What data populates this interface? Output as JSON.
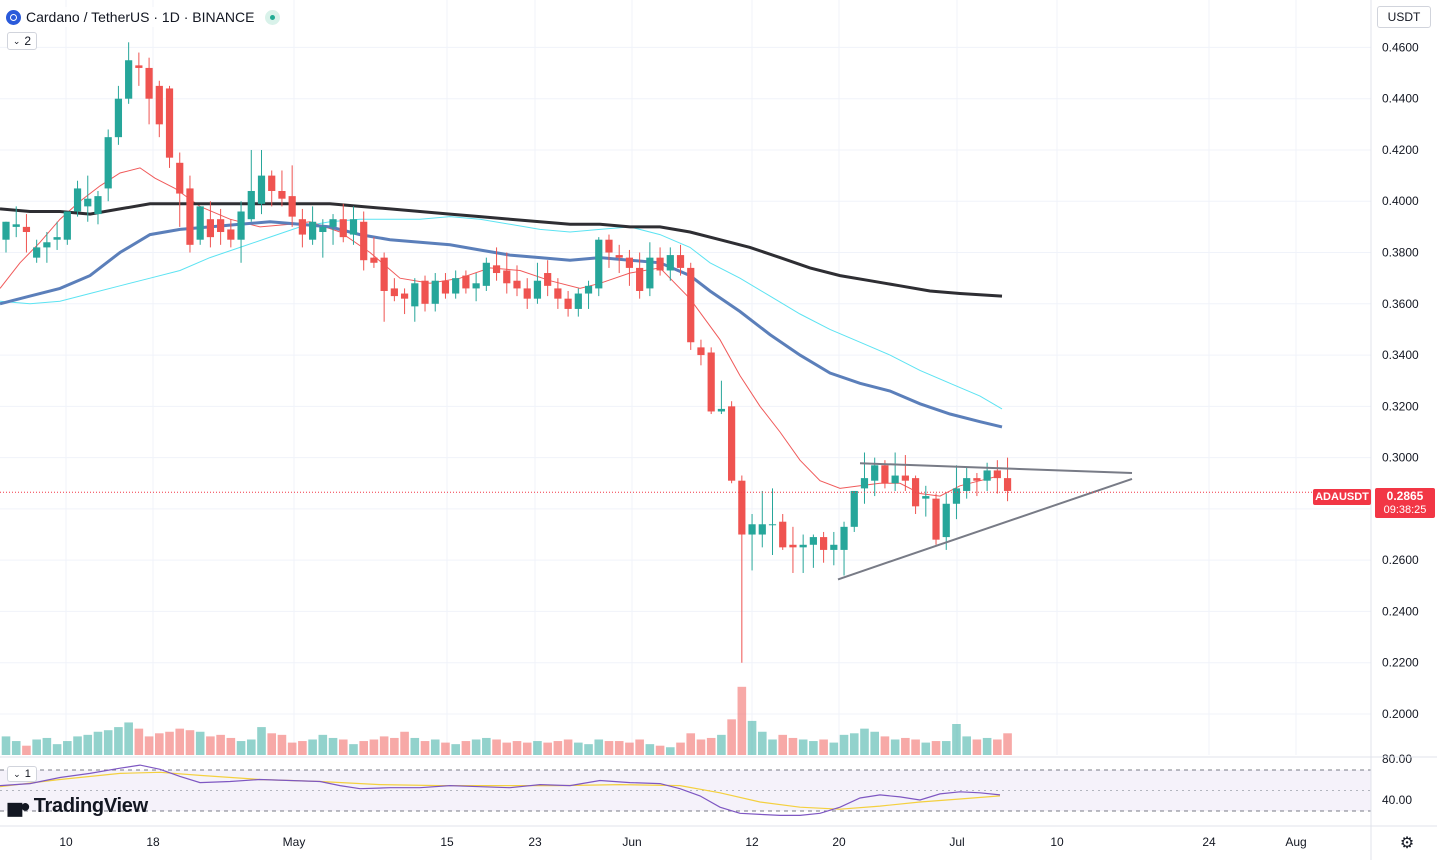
{
  "header": {
    "title": "Cardano / TetherUS · 1D · BINANCE",
    "indicator_count": "2",
    "rsi_indicator_count": "1"
  },
  "currency_button": "USDT",
  "branding": "TradingView",
  "last_price": {
    "symbol": "ADAUSDT",
    "price": "0.2865",
    "countdown": "09:38:25"
  },
  "colors": {
    "up": "#26a69a",
    "down": "#ef5350",
    "ma_short": "#f05a5a",
    "ma_mid": "#5b7fba",
    "ma_cyan": "#5ce3f2",
    "ma_long": "#2e2e33",
    "trendline": "#787b86",
    "rsi": "#7e57c2",
    "rsi_ma": "#f4d03f"
  },
  "chart_data": {
    "type": "candlestick",
    "y_axis_labels": [
      "0.4600",
      "0.4400",
      "0.4200",
      "0.4000",
      "0.3800",
      "0.3600",
      "0.3400",
      "0.3200",
      "0.3000",
      "0.2600",
      "0.2400",
      "0.2200",
      "0.2000"
    ],
    "x_axis_labels": [
      "10",
      "18",
      "May",
      "15",
      "23",
      "Jun",
      "12",
      "20",
      "Jul",
      "10",
      "24",
      "Aug"
    ],
    "ylim": [
      0.184,
      0.4785
    ],
    "candles": [
      [
        0.385,
        0.392,
        0.38,
        0.392
      ],
      [
        0.39,
        0.398,
        0.386,
        0.391
      ],
      [
        0.39,
        0.395,
        0.38,
        0.388
      ],
      [
        0.378,
        0.385,
        0.376,
        0.382
      ],
      [
        0.382,
        0.388,
        0.376,
        0.384
      ],
      [
        0.385,
        0.392,
        0.381,
        0.386
      ],
      [
        0.385,
        0.395,
        0.383,
        0.396
      ],
      [
        0.396,
        0.408,
        0.394,
        0.405
      ],
      [
        0.398,
        0.41,
        0.392,
        0.401
      ],
      [
        0.395,
        0.404,
        0.391,
        0.402
      ],
      [
        0.405,
        0.428,
        0.4,
        0.425
      ],
      [
        0.425,
        0.445,
        0.422,
        0.44
      ],
      [
        0.44,
        0.462,
        0.438,
        0.455
      ],
      [
        0.453,
        0.458,
        0.445,
        0.452
      ],
      [
        0.452,
        0.456,
        0.43,
        0.44
      ],
      [
        0.445,
        0.447,
        0.425,
        0.43
      ],
      [
        0.444,
        0.445,
        0.413,
        0.417
      ],
      [
        0.415,
        0.419,
        0.39,
        0.403
      ],
      [
        0.405,
        0.41,
        0.38,
        0.383
      ],
      [
        0.385,
        0.398,
        0.383,
        0.398
      ],
      [
        0.393,
        0.4,
        0.382,
        0.386
      ],
      [
        0.393,
        0.397,
        0.383,
        0.388
      ],
      [
        0.389,
        0.393,
        0.382,
        0.385
      ],
      [
        0.385,
        0.4,
        0.376,
        0.396
      ],
      [
        0.393,
        0.42,
        0.392,
        0.404
      ],
      [
        0.399,
        0.42,
        0.395,
        0.41
      ],
      [
        0.41,
        0.412,
        0.398,
        0.404
      ],
      [
        0.404,
        0.412,
        0.398,
        0.401
      ],
      [
        0.402,
        0.414,
        0.39,
        0.394
      ],
      [
        0.393,
        0.397,
        0.382,
        0.387
      ],
      [
        0.385,
        0.398,
        0.383,
        0.392
      ],
      [
        0.388,
        0.393,
        0.378,
        0.39
      ],
      [
        0.39,
        0.395,
        0.383,
        0.393
      ],
      [
        0.393,
        0.399,
        0.384,
        0.386
      ],
      [
        0.387,
        0.398,
        0.383,
        0.393
      ],
      [
        0.392,
        0.396,
        0.373,
        0.377
      ],
      [
        0.378,
        0.386,
        0.374,
        0.376
      ],
      [
        0.378,
        0.38,
        0.353,
        0.365
      ],
      [
        0.366,
        0.37,
        0.361,
        0.363
      ],
      [
        0.364,
        0.366,
        0.356,
        0.362
      ],
      [
        0.359,
        0.37,
        0.353,
        0.368
      ],
      [
        0.369,
        0.371,
        0.357,
        0.36
      ],
      [
        0.36,
        0.372,
        0.357,
        0.369
      ],
      [
        0.369,
        0.372,
        0.362,
        0.364
      ],
      [
        0.364,
        0.373,
        0.362,
        0.37
      ],
      [
        0.371,
        0.373,
        0.364,
        0.366
      ],
      [
        0.366,
        0.372,
        0.361,
        0.368
      ],
      [
        0.367,
        0.378,
        0.365,
        0.376
      ],
      [
        0.375,
        0.382,
        0.369,
        0.372
      ],
      [
        0.373,
        0.38,
        0.364,
        0.368
      ],
      [
        0.369,
        0.375,
        0.363,
        0.366
      ],
      [
        0.366,
        0.37,
        0.358,
        0.362
      ],
      [
        0.362,
        0.376,
        0.36,
        0.369
      ],
      [
        0.372,
        0.377,
        0.363,
        0.367
      ],
      [
        0.366,
        0.37,
        0.358,
        0.362
      ],
      [
        0.362,
        0.365,
        0.355,
        0.358
      ],
      [
        0.358,
        0.366,
        0.355,
        0.364
      ],
      [
        0.364,
        0.369,
        0.358,
        0.367
      ],
      [
        0.366,
        0.386,
        0.363,
        0.385
      ],
      [
        0.385,
        0.387,
        0.374,
        0.38
      ],
      [
        0.379,
        0.383,
        0.372,
        0.378
      ],
      [
        0.378,
        0.381,
        0.367,
        0.374
      ],
      [
        0.374,
        0.38,
        0.362,
        0.365
      ],
      [
        0.366,
        0.384,
        0.363,
        0.378
      ],
      [
        0.378,
        0.382,
        0.371,
        0.373
      ],
      [
        0.373,
        0.382,
        0.369,
        0.379
      ],
      [
        0.379,
        0.383,
        0.371,
        0.374
      ],
      [
        0.374,
        0.376,
        0.342,
        0.345
      ],
      [
        0.343,
        0.346,
        0.336,
        0.34
      ],
      [
        0.341,
        0.343,
        0.317,
        0.318
      ],
      [
        0.318,
        0.33,
        0.317,
        0.319
      ],
      [
        0.32,
        0.322,
        0.29,
        0.291
      ],
      [
        0.291,
        0.293,
        0.22,
        0.27
      ],
      [
        0.27,
        0.278,
        0.256,
        0.274
      ],
      [
        0.27,
        0.287,
        0.265,
        0.274
      ],
      [
        0.274,
        0.288,
        0.262,
        0.274
      ],
      [
        0.275,
        0.278,
        0.264,
        0.265
      ],
      [
        0.266,
        0.273,
        0.255,
        0.265
      ],
      [
        0.265,
        0.27,
        0.255,
        0.266
      ],
      [
        0.266,
        0.27,
        0.257,
        0.269
      ],
      [
        0.269,
        0.271,
        0.259,
        0.264
      ],
      [
        0.264,
        0.271,
        0.258,
        0.266
      ],
      [
        0.264,
        0.275,
        0.254,
        0.273
      ],
      [
        0.273,
        0.286,
        0.271,
        0.287
      ],
      [
        0.288,
        0.302,
        0.282,
        0.292
      ],
      [
        0.291,
        0.3,
        0.285,
        0.297
      ],
      [
        0.297,
        0.299,
        0.288,
        0.29
      ],
      [
        0.29,
        0.302,
        0.287,
        0.293
      ],
      [
        0.293,
        0.301,
        0.287,
        0.291
      ],
      [
        0.292,
        0.293,
        0.278,
        0.281
      ],
      [
        0.284,
        0.289,
        0.277,
        0.285
      ],
      [
        0.284,
        0.286,
        0.266,
        0.268
      ],
      [
        0.269,
        0.286,
        0.264,
        0.282
      ],
      [
        0.282,
        0.297,
        0.276,
        0.288
      ],
      [
        0.287,
        0.296,
        0.284,
        0.292
      ],
      [
        0.292,
        0.294,
        0.285,
        0.291
      ],
      [
        0.291,
        0.298,
        0.287,
        0.295
      ],
      [
        0.295,
        0.299,
        0.286,
        0.292
      ],
      [
        0.292,
        0.3,
        0.283,
        0.287
      ]
    ],
    "volume": [
      12,
      9,
      6,
      10,
      11,
      7,
      9,
      12,
      13,
      15,
      16,
      18,
      21,
      17,
      12,
      14,
      15,
      17,
      16,
      15,
      12,
      13,
      11,
      9,
      10,
      18,
      14,
      13,
      8,
      9,
      10,
      13,
      11,
      10,
      7,
      9,
      10,
      12,
      11,
      15,
      11,
      9,
      10,
      8,
      7,
      9,
      10,
      11,
      10,
      8,
      9,
      8,
      9,
      8,
      9,
      10,
      8,
      7,
      10,
      9,
      9,
      8,
      10,
      7,
      6,
      5,
      8,
      14,
      10,
      11,
      13,
      23,
      44,
      22,
      15,
      10,
      13,
      11,
      10,
      9,
      10,
      8,
      13,
      14,
      17,
      15,
      12,
      10,
      11,
      10,
      8,
      9,
      9,
      20,
      12,
      10,
      11,
      10,
      14
    ],
    "ma_short": [
      [
        0,
        0.366
      ],
      [
        20,
        0.376
      ],
      [
        40,
        0.384
      ],
      [
        60,
        0.393
      ],
      [
        80,
        0.4
      ],
      [
        100,
        0.406
      ],
      [
        120,
        0.411
      ],
      [
        140,
        0.413
      ],
      [
        155,
        0.409
      ],
      [
        175,
        0.405
      ],
      [
        200,
        0.398
      ],
      [
        230,
        0.393
      ],
      [
        260,
        0.39
      ],
      [
        290,
        0.391
      ],
      [
        310,
        0.392
      ],
      [
        340,
        0.388
      ],
      [
        370,
        0.38
      ],
      [
        400,
        0.37
      ],
      [
        430,
        0.368
      ],
      [
        460,
        0.37
      ],
      [
        490,
        0.374
      ],
      [
        520,
        0.373
      ],
      [
        550,
        0.369
      ],
      [
        580,
        0.366
      ],
      [
        600,
        0.368
      ],
      [
        630,
        0.372
      ],
      [
        660,
        0.374
      ],
      [
        690,
        0.362
      ],
      [
        720,
        0.346
      ],
      [
        740,
        0.332
      ],
      [
        760,
        0.32
      ],
      [
        780,
        0.31
      ],
      [
        800,
        0.299
      ],
      [
        820,
        0.291
      ],
      [
        840,
        0.288
      ],
      [
        860,
        0.289
      ],
      [
        880,
        0.29
      ],
      [
        900,
        0.29
      ],
      [
        920,
        0.286
      ],
      [
        940,
        0.285
      ],
      [
        960,
        0.289
      ],
      [
        980,
        0.291
      ],
      [
        1000,
        0.293
      ]
    ],
    "ma_mid": [
      [
        0,
        0.36
      ],
      [
        30,
        0.363
      ],
      [
        60,
        0.366
      ],
      [
        90,
        0.371
      ],
      [
        120,
        0.38
      ],
      [
        150,
        0.387
      ],
      [
        180,
        0.389
      ],
      [
        210,
        0.39
      ],
      [
        240,
        0.391
      ],
      [
        270,
        0.392
      ],
      [
        300,
        0.391
      ],
      [
        330,
        0.39
      ],
      [
        360,
        0.387
      ],
      [
        390,
        0.385
      ],
      [
        420,
        0.384
      ],
      [
        450,
        0.383
      ],
      [
        480,
        0.381
      ],
      [
        510,
        0.379
      ],
      [
        540,
        0.378
      ],
      [
        570,
        0.377
      ],
      [
        600,
        0.378
      ],
      [
        630,
        0.377
      ],
      [
        660,
        0.376
      ],
      [
        690,
        0.371
      ],
      [
        710,
        0.365
      ],
      [
        740,
        0.357
      ],
      [
        770,
        0.348
      ],
      [
        800,
        0.34
      ],
      [
        830,
        0.333
      ],
      [
        860,
        0.329
      ],
      [
        890,
        0.326
      ],
      [
        920,
        0.321
      ],
      [
        950,
        0.317
      ],
      [
        980,
        0.314
      ],
      [
        1002,
        0.312
      ]
    ],
    "ma_cyan": [
      [
        0,
        0.361
      ],
      [
        30,
        0.36
      ],
      [
        60,
        0.361
      ],
      [
        90,
        0.364
      ],
      [
        120,
        0.367
      ],
      [
        150,
        0.37
      ],
      [
        180,
        0.373
      ],
      [
        210,
        0.378
      ],
      [
        240,
        0.382
      ],
      [
        270,
        0.386
      ],
      [
        300,
        0.39
      ],
      [
        330,
        0.392
      ],
      [
        360,
        0.393
      ],
      [
        390,
        0.393
      ],
      [
        420,
        0.393
      ],
      [
        450,
        0.394
      ],
      [
        480,
        0.393
      ],
      [
        510,
        0.391
      ],
      [
        540,
        0.389
      ],
      [
        570,
        0.388
      ],
      [
        600,
        0.389
      ],
      [
        630,
        0.39
      ],
      [
        660,
        0.387
      ],
      [
        690,
        0.382
      ],
      [
        710,
        0.376
      ],
      [
        740,
        0.37
      ],
      [
        770,
        0.363
      ],
      [
        800,
        0.356
      ],
      [
        830,
        0.35
      ],
      [
        860,
        0.345
      ],
      [
        890,
        0.34
      ],
      [
        920,
        0.334
      ],
      [
        950,
        0.329
      ],
      [
        980,
        0.324
      ],
      [
        1002,
        0.319
      ]
    ],
    "ma_long": [
      [
        0,
        0.397
      ],
      [
        30,
        0.396
      ],
      [
        60,
        0.396
      ],
      [
        90,
        0.395
      ],
      [
        120,
        0.397
      ],
      [
        150,
        0.399
      ],
      [
        180,
        0.399
      ],
      [
        210,
        0.399
      ],
      [
        240,
        0.399
      ],
      [
        270,
        0.399
      ],
      [
        300,
        0.399
      ],
      [
        330,
        0.399
      ],
      [
        360,
        0.398
      ],
      [
        390,
        0.397
      ],
      [
        420,
        0.396
      ],
      [
        450,
        0.395
      ],
      [
        480,
        0.394
      ],
      [
        510,
        0.393
      ],
      [
        540,
        0.392
      ],
      [
        570,
        0.391
      ],
      [
        600,
        0.391
      ],
      [
        630,
        0.39
      ],
      [
        660,
        0.39
      ],
      [
        690,
        0.388
      ],
      [
        720,
        0.385
      ],
      [
        750,
        0.382
      ],
      [
        780,
        0.378
      ],
      [
        810,
        0.374
      ],
      [
        840,
        0.371
      ],
      [
        870,
        0.369
      ],
      [
        900,
        0.367
      ],
      [
        930,
        0.365
      ],
      [
        960,
        0.364
      ],
      [
        1002,
        0.363
      ]
    ],
    "trendlines": [
      {
        "from": [
          860,
          0.2978
        ],
        "to": [
          1132,
          0.294
        ]
      },
      {
        "from": [
          838,
          0.2525
        ],
        "to": [
          1132,
          0.2917
        ]
      }
    ],
    "rsi_axis_labels": [
      "80.00",
      "40.00"
    ],
    "rsi_band": [
      30,
      70
    ],
    "rsi_ylim": [
      20,
      90
    ],
    "rsi": [
      [
        0,
        54
      ],
      [
        30,
        56
      ],
      [
        60,
        62
      ],
      [
        90,
        66
      ],
      [
        120,
        71
      ],
      [
        140,
        74
      ],
      [
        160,
        70
      ],
      [
        180,
        63
      ],
      [
        200,
        57
      ],
      [
        230,
        58
      ],
      [
        260,
        60
      ],
      [
        290,
        59
      ],
      [
        320,
        58
      ],
      [
        340,
        54
      ],
      [
        360,
        51
      ],
      [
        390,
        52
      ],
      [
        420,
        52
      ],
      [
        450,
        54
      ],
      [
        480,
        53
      ],
      [
        510,
        52
      ],
      [
        540,
        55
      ],
      [
        570,
        54
      ],
      [
        600,
        59
      ],
      [
        630,
        57
      ],
      [
        660,
        56
      ],
      [
        680,
        51
      ],
      [
        700,
        44
      ],
      [
        720,
        33
      ],
      [
        740,
        27
      ],
      [
        760,
        26
      ],
      [
        780,
        25
      ],
      [
        800,
        25
      ],
      [
        820,
        27
      ],
      [
        840,
        33
      ],
      [
        860,
        42
      ],
      [
        880,
        45
      ],
      [
        900,
        43
      ],
      [
        920,
        40
      ],
      [
        940,
        46
      ],
      [
        960,
        48
      ],
      [
        980,
        47
      ],
      [
        1000,
        45
      ]
    ],
    "rsi_ma": [
      [
        0,
        53
      ],
      [
        60,
        60
      ],
      [
        120,
        66
      ],
      [
        160,
        67
      ],
      [
        200,
        64
      ],
      [
        260,
        60
      ],
      [
        320,
        58
      ],
      [
        380,
        55
      ],
      [
        440,
        54
      ],
      [
        500,
        54
      ],
      [
        560,
        54
      ],
      [
        620,
        55
      ],
      [
        680,
        54
      ],
      [
        720,
        47
      ],
      [
        760,
        38
      ],
      [
        800,
        33
      ],
      [
        840,
        31
      ],
      [
        880,
        34
      ],
      [
        920,
        38
      ],
      [
        960,
        41
      ],
      [
        1000,
        44
      ]
    ]
  }
}
